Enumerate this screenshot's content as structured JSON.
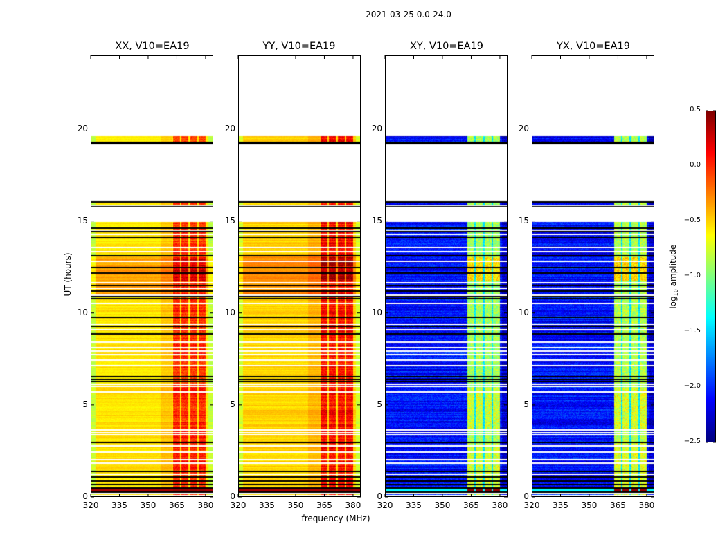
{
  "figure": {
    "suptitle": "2021-03-25 0.0-24.0"
  },
  "chart_data": [
    {
      "type": "heatmap",
      "title": "XX, V10=EA19",
      "xlabel": "",
      "ylabel": "UT (hours)",
      "xlim": [
        320,
        384
      ],
      "ylim": [
        0,
        24
      ],
      "xticks": [
        "320",
        "335",
        "350",
        "365",
        "380"
      ],
      "yticks": [
        "0",
        "5",
        "10",
        "15",
        "20"
      ],
      "base_level": -0.55,
      "rfi_band_level": 0.0,
      "description": "Mostly yellow/orange amplitude (~-0.6 to -0.3) across 320-355 MHz, strong red/dark-red (~0 to 0.4) in four sub-bands 362-380 MHz; data present 0-15 UT with gaps, narrow strips near 16 and 19.3-19.6 UT, empty 16-19.2 and 19.7-24 UT"
    },
    {
      "type": "heatmap",
      "title": "YY, V10=EA19",
      "xlabel": "frequency (MHz)",
      "ylabel": "",
      "xlim": [
        320,
        384
      ],
      "ylim": [
        0,
        24
      ],
      "xticks": [
        "320",
        "335",
        "350",
        "365",
        "380"
      ],
      "yticks": [
        "0",
        "5",
        "10",
        "15",
        "20"
      ],
      "base_level": -0.5,
      "rfi_band_level": 0.1,
      "description": "Similar to XX, slightly stronger red sub-bands 362-380 MHz"
    },
    {
      "type": "heatmap",
      "title": "XY, V10=EA19",
      "xlabel": "",
      "ylabel": "",
      "xlim": [
        320,
        384
      ],
      "ylim": [
        0,
        24
      ],
      "xticks": [
        "320",
        "335",
        "350",
        "365",
        "380"
      ],
      "yticks": [
        "0",
        "5",
        "10",
        "15",
        "20"
      ],
      "base_level": -2.1,
      "rfi_band_level": -0.9,
      "description": "Dark blue (~-2.3 to -1.8) background, four green/yellow sub-bands 362-380 MHz (~-1.0 to -0.5), dark red saturated at 0-0.5 UT in sub-bands"
    },
    {
      "type": "heatmap",
      "title": "YX, V10=EA19",
      "xlabel": "",
      "ylabel": "",
      "xlim": [
        320,
        384
      ],
      "ylim": [
        0,
        24
      ],
      "xticks": [
        "320",
        "335",
        "350",
        "365",
        "380"
      ],
      "yticks": [
        "0",
        "5",
        "10",
        "15",
        "20"
      ],
      "base_level": -2.1,
      "rfi_band_level": -0.85,
      "description": "Nearly identical to XY"
    }
  ],
  "colorbar": {
    "label_prefix": "log",
    "label_sub": "10",
    "label_suffix": " amplitude",
    "vmin": -2.5,
    "vmax": 0.5,
    "ticks": [
      "0.5",
      "0.0",
      "−0.5",
      "−1.0",
      "−1.5",
      "−2.0",
      "−2.5"
    ],
    "colormap": "jet"
  },
  "rows": {
    "data_ranges_ut": [
      [
        0.0,
        15.0
      ],
      [
        15.9,
        16.1
      ],
      [
        19.2,
        19.65
      ]
    ],
    "black_lines_ut": [
      0.35,
      0.55,
      0.75,
      0.95,
      1.15,
      1.45,
      3.05,
      6.35,
      6.45,
      6.6,
      8.95,
      9.35,
      9.85,
      10.85,
      10.95,
      11.25,
      11.55,
      12.25,
      12.55,
      13.2,
      14.15,
      14.5,
      14.7,
      16.1,
      19.3,
      19.35
    ],
    "white_lines_ut": [
      0.15,
      0.25,
      1.3,
      1.9,
      2.1,
      2.5,
      2.85,
      3.45,
      3.55,
      3.7,
      5.8,
      6.1,
      6.2,
      7.2,
      7.5,
      7.8,
      8.0,
      8.2,
      8.5,
      9.15,
      9.45,
      10.6,
      11.05,
      11.4,
      11.7,
      12.9,
      13.4,
      13.65,
      14.35,
      14.55,
      15.1,
      15.5
    ],
    "strong_rows_ut": [
      [
        0.35,
        0.5
      ],
      [
        11.8,
        12.5
      ],
      [
        12.6,
        13.1
      ]
    ]
  }
}
